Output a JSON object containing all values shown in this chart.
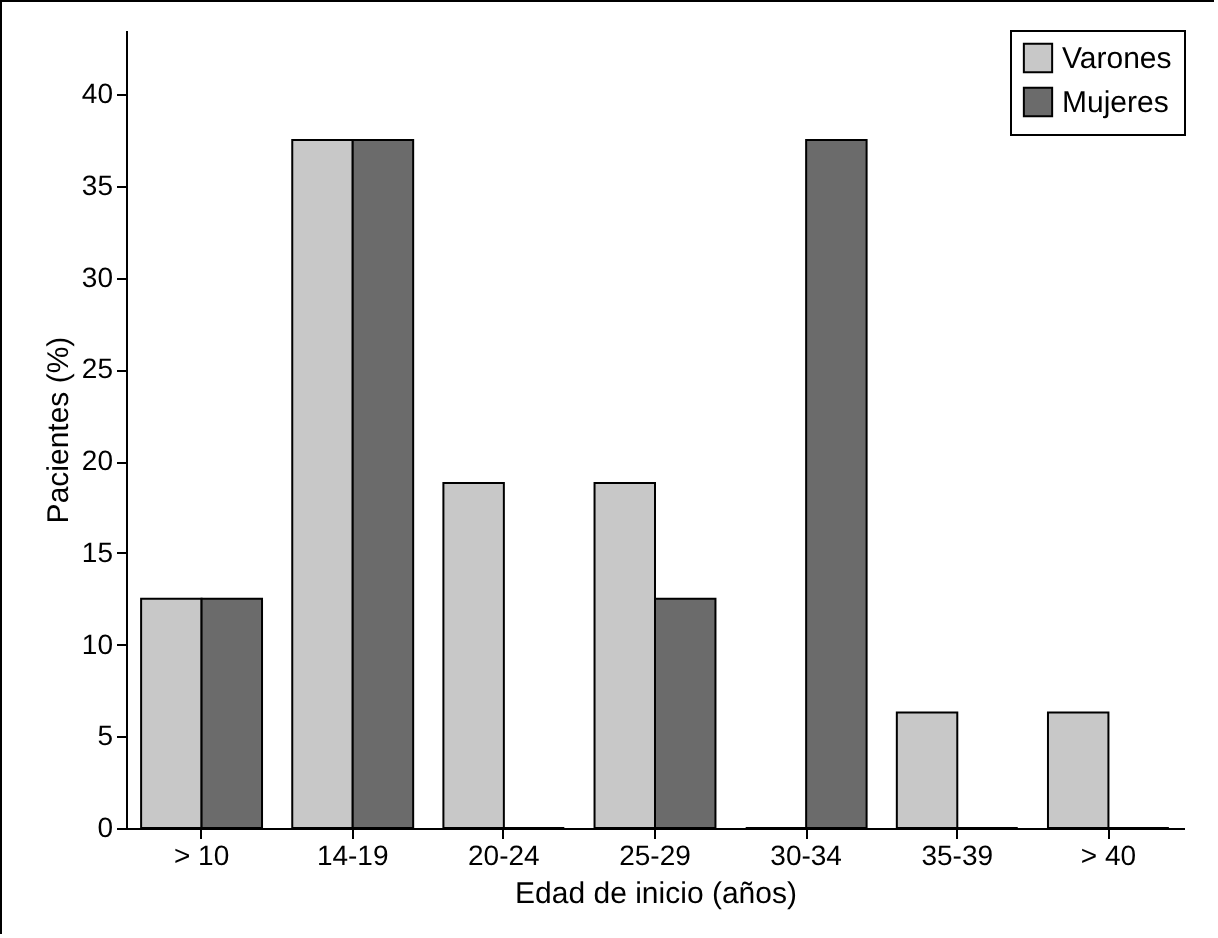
{
  "chart_data": {
    "type": "bar",
    "xlabel": "Edad de inicio (años)",
    "ylabel": "Pacientes (%)",
    "categories": [
      "> 10",
      "14-19",
      "20-24",
      "25-29",
      "30-34",
      "35-39",
      "> 40"
    ],
    "series": [
      {
        "name": "Varones",
        "color": "#c8c8c8",
        "values": [
          12.5,
          37.5,
          18.8,
          18.8,
          0,
          6.3,
          6.3
        ]
      },
      {
        "name": "Mujeres",
        "color": "#6b6b6b",
        "values": [
          12.5,
          37.5,
          0,
          12.5,
          37.5,
          0,
          0
        ]
      }
    ],
    "ylim": [
      0,
      43.5
    ],
    "yticks": [
      0,
      5,
      10,
      15,
      20,
      25,
      30,
      35,
      40
    ],
    "legend": "top right",
    "grid": false
  }
}
